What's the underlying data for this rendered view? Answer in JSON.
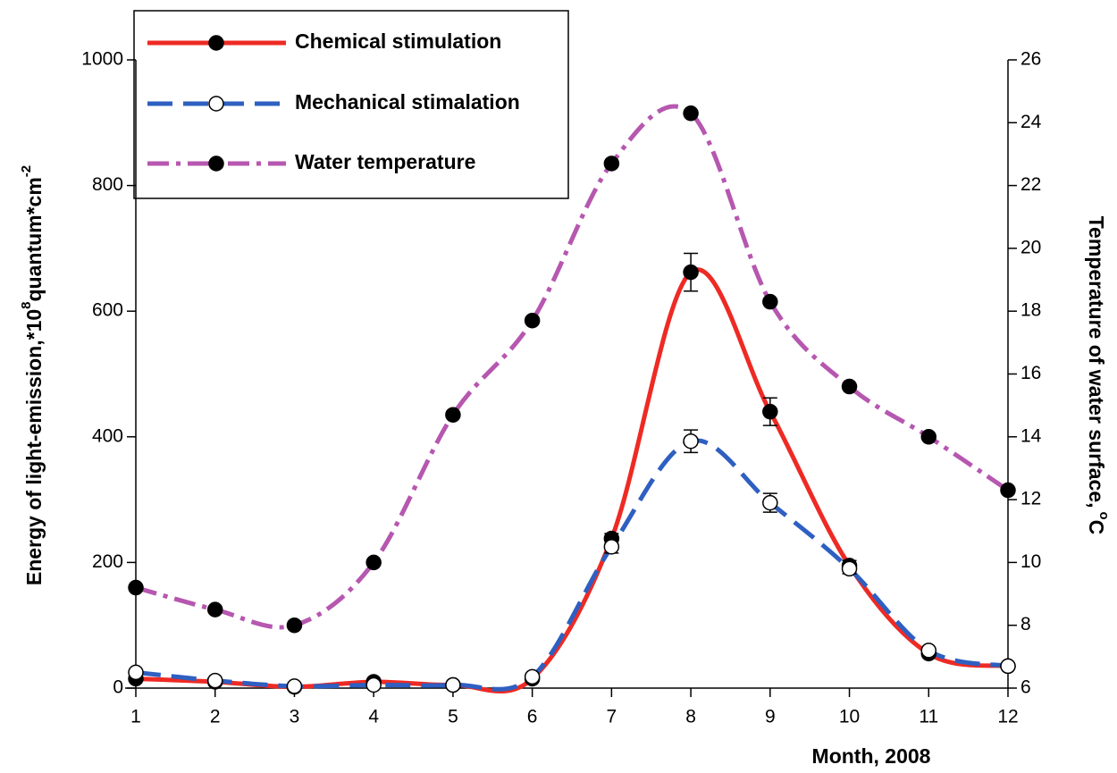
{
  "chart_data": {
    "type": "line",
    "xlabel": "Month, 2008",
    "ylabel": [
      "Energy of light-emission,*10",
      "8",
      "quantum*cm",
      "-2"
    ],
    "y2label": [
      "Temperature of water surface,",
      "o",
      "C"
    ],
    "x": [
      1,
      2,
      3,
      4,
      5,
      6,
      7,
      8,
      9,
      10,
      11,
      12
    ],
    "xlim": [
      1,
      12
    ],
    "xticks": [
      1,
      2,
      3,
      4,
      5,
      6,
      7,
      8,
      9,
      10,
      11,
      12
    ],
    "ylim": [
      0,
      1000
    ],
    "yticks": [
      0,
      200,
      400,
      600,
      800,
      1000
    ],
    "y2lim": [
      6,
      26
    ],
    "y2ticks": [
      6,
      8,
      10,
      12,
      14,
      16,
      18,
      20,
      22,
      24,
      26
    ],
    "legend": "upper left",
    "series": [
      {
        "name": "Chemical stimulation",
        "color": "#ee2a24",
        "line_style": "solid",
        "marker_fill": "#000000",
        "values": [
          15,
          10,
          2,
          10,
          5,
          15,
          238,
          662,
          440,
          195,
          55,
          35
        ],
        "errors": [
          null,
          null,
          null,
          null,
          null,
          null,
          8,
          30,
          22,
          8,
          null,
          null
        ]
      },
      {
        "name": "Mechanical stimalation",
        "color": "#2e5fc1",
        "line_style": "dashed",
        "marker_fill": "#ffffff",
        "values": [
          25,
          12,
          3,
          5,
          5,
          18,
          225,
          393,
          295,
          190,
          60,
          35
        ],
        "errors": [
          null,
          null,
          null,
          null,
          null,
          null,
          10,
          18,
          15,
          8,
          null,
          null
        ]
      },
      {
        "name": "Water temperature",
        "color": "#b657b0",
        "line_style": "dashdot",
        "marker_fill": "#000000",
        "axis": "y2",
        "values": [
          9.2,
          8.5,
          8.0,
          10.0,
          14.7,
          17.7,
          22.7,
          24.3,
          18.3,
          15.6,
          14.0,
          12.3
        ]
      }
    ]
  }
}
